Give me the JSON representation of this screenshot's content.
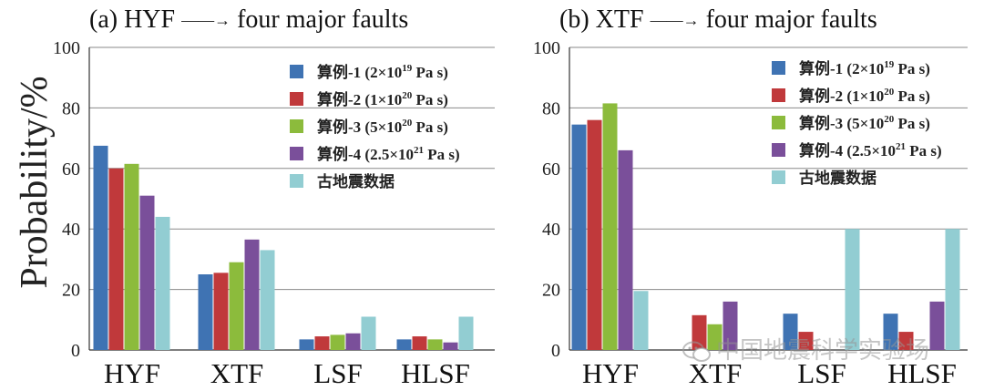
{
  "figure_ylabel": "Probability/%",
  "watermark": "中国地震科学实验场",
  "legend_entries": [
    {
      "label": "算例-1 (2×10",
      "sup": "19",
      "suffix": "  Pa s)",
      "color": "#3f73b3"
    },
    {
      "label": "算例-2 (1×10",
      "sup": "20",
      "suffix": "  Pa s)",
      "color": "#c0393b"
    },
    {
      "label": "算例-3 (5×10",
      "sup": "20",
      "suffix": "  Pa s)",
      "color": "#8cbb3c"
    },
    {
      "label": "算例-4 (2.5×10",
      "sup": "21",
      "suffix": "  Pa s)",
      "color": "#7a4f9a"
    },
    {
      "label": "古地震数据",
      "sup": "",
      "suffix": "",
      "color": "#92cdd2"
    }
  ],
  "chart_data": [
    {
      "type": "bar",
      "title_prefix": "(a)",
      "title": "HYF ——→ four major faults",
      "ylabel": "Probability/%",
      "categories": [
        "HYF",
        "XTF",
        "LSF",
        "HLSF"
      ],
      "ylim": [
        0,
        100
      ],
      "yticks": [
        0,
        20,
        40,
        60,
        80,
        100
      ],
      "grid": true,
      "legend": "top-right",
      "series": [
        {
          "name": "算例-1 (2×10^19 Pa s)",
          "values": [
            67.5,
            25,
            3.5,
            3.5
          ]
        },
        {
          "name": "算例-2 (1×10^20 Pa s)",
          "values": [
            60,
            25.5,
            4.5,
            4.5
          ]
        },
        {
          "name": "算例-3 (5×10^20 Pa s)",
          "values": [
            61.5,
            29,
            5,
            3.5
          ]
        },
        {
          "name": "算例-4 (2.5×10^21 Pa s)",
          "values": [
            51,
            36.5,
            5.5,
            2.5
          ]
        },
        {
          "name": "古地震数据",
          "values": [
            44,
            33,
            11,
            11
          ]
        }
      ]
    },
    {
      "type": "bar",
      "title_prefix": "(b)",
      "title": "XTF ——→ four major faults",
      "ylabel": "Probability/%",
      "categories": [
        "HYF",
        "XTF",
        "LSF",
        "HLSF"
      ],
      "ylim": [
        0,
        100
      ],
      "yticks": [
        0,
        20,
        40,
        60,
        80,
        100
      ],
      "grid": true,
      "legend": "top-right",
      "series": [
        {
          "name": "算例-1 (2×10^19 Pa s)",
          "values": [
            74.5,
            0,
            12,
            12
          ]
        },
        {
          "name": "算例-2 (1×10^20 Pa s)",
          "values": [
            76,
            11.5,
            6,
            6
          ]
        },
        {
          "name": "算例-3 (5×10^20 Pa s)",
          "values": [
            81.5,
            8.5,
            0,
            0
          ]
        },
        {
          "name": "算例-4 (2.5×10^21 Pa s)",
          "values": [
            66,
            16,
            0,
            16
          ]
        },
        {
          "name": "古地震数据",
          "values": [
            19.5,
            0,
            40,
            40
          ]
        }
      ]
    }
  ]
}
